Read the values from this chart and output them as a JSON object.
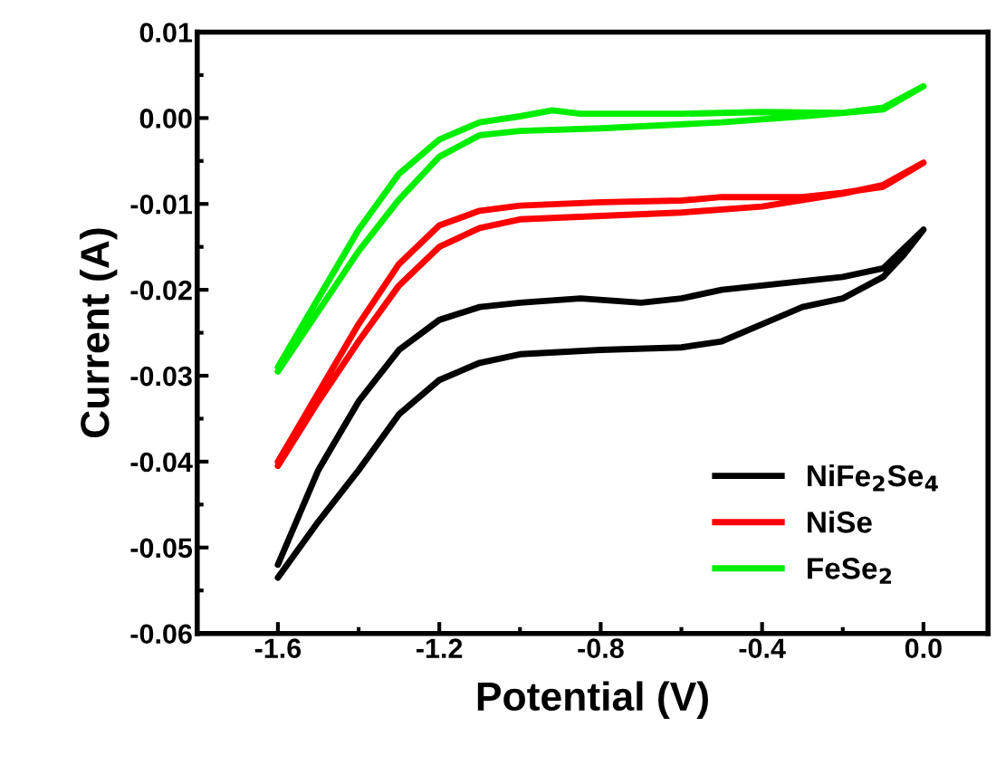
{
  "chart_data": {
    "type": "line",
    "xlabel": "Potential (V)",
    "ylabel": "Current (A)",
    "xlim": [
      -1.8,
      0.16
    ],
    "ylim": [
      -0.06,
      0.01
    ],
    "xticks": [
      {
        "value": -1.6,
        "label": "-1.6"
      },
      {
        "value": -1.2,
        "label": "-1.2"
      },
      {
        "value": -0.8,
        "label": "-0.8"
      },
      {
        "value": -0.4,
        "label": "-0.4"
      },
      {
        "value": 0.0,
        "label": "0.0"
      }
    ],
    "yticks": [
      {
        "value": -0.06,
        "label": "-0.06"
      },
      {
        "value": -0.05,
        "label": "-0.05"
      },
      {
        "value": -0.04,
        "label": "-0.04"
      },
      {
        "value": -0.03,
        "label": "-0.03"
      },
      {
        "value": -0.02,
        "label": "-0.02"
      },
      {
        "value": -0.01,
        "label": "-0.01"
      },
      {
        "value": 0.0,
        "label": "0.00"
      },
      {
        "value": 0.01,
        "label": "0.01"
      }
    ],
    "legend": "bottom right",
    "grid": false,
    "marker": "none",
    "line_style": "solid",
    "series": [
      {
        "name": "NiFe$_{2}$Se$_{4}$",
        "color": "#000000",
        "x": [
          -1.6,
          -1.5,
          -1.4,
          -1.3,
          -1.2,
          -1.1,
          -1.0,
          -0.85,
          -0.7,
          -0.6,
          -0.5,
          -0.4,
          -0.3,
          -0.2,
          -0.1,
          0.0,
          -0.05,
          -0.1,
          -0.2,
          -0.3,
          -0.4,
          -0.5,
          -0.6,
          -0.8,
          -1.0,
          -1.1,
          -1.2,
          -1.3,
          -1.4,
          -1.5,
          -1.6
        ],
        "values": [
          -0.052,
          -0.041,
          -0.033,
          -0.027,
          -0.0235,
          -0.022,
          -0.0215,
          -0.021,
          -0.0215,
          -0.021,
          -0.02,
          -0.0195,
          -0.019,
          -0.0185,
          -0.0175,
          -0.013,
          -0.016,
          -0.0185,
          -0.021,
          -0.022,
          -0.024,
          -0.026,
          -0.0267,
          -0.027,
          -0.0275,
          -0.0285,
          -0.0305,
          -0.0345,
          -0.041,
          -0.047,
          -0.0535
        ]
      },
      {
        "name": "NiSe",
        "color": "#ff0000",
        "x": [
          -1.6,
          -1.5,
          -1.4,
          -1.3,
          -1.2,
          -1.1,
          -1.0,
          -0.8,
          -0.6,
          -0.5,
          -0.3,
          -0.2,
          -0.1,
          0.0,
          -0.1,
          -0.2,
          -0.4,
          -0.6,
          -0.8,
          -1.0,
          -1.1,
          -1.2,
          -1.3,
          -1.4,
          -1.5,
          -1.6
        ],
        "values": [
          -0.04,
          -0.032,
          -0.024,
          -0.017,
          -0.0125,
          -0.0108,
          -0.0102,
          -0.0098,
          -0.0096,
          -0.0092,
          -0.0092,
          -0.0087,
          -0.008,
          -0.0052,
          -0.0078,
          -0.0088,
          -0.0103,
          -0.011,
          -0.0114,
          -0.0118,
          -0.0128,
          -0.015,
          -0.0195,
          -0.026,
          -0.033,
          -0.0405
        ]
      },
      {
        "name": "FeSe$_{2}$",
        "color": "#00ee00",
        "x": [
          -1.6,
          -1.5,
          -1.4,
          -1.3,
          -1.2,
          -1.1,
          -1.0,
          -0.92,
          -0.85,
          -0.6,
          -0.4,
          -0.2,
          -0.1,
          0.0,
          -0.1,
          -0.3,
          -0.5,
          -0.8,
          -1.0,
          -1.1,
          -1.2,
          -1.3,
          -1.4,
          -1.5,
          -1.6
        ],
        "values": [
          -0.029,
          -0.021,
          -0.013,
          -0.0065,
          -0.0025,
          -0.0005,
          0.0002,
          0.0009,
          0.0005,
          0.0005,
          0.0007,
          0.0006,
          0.0012,
          0.0037,
          0.001,
          0.0002,
          -0.0005,
          -0.0012,
          -0.0015,
          -0.002,
          -0.0045,
          -0.0095,
          -0.0155,
          -0.0225,
          -0.0295
        ]
      }
    ]
  }
}
